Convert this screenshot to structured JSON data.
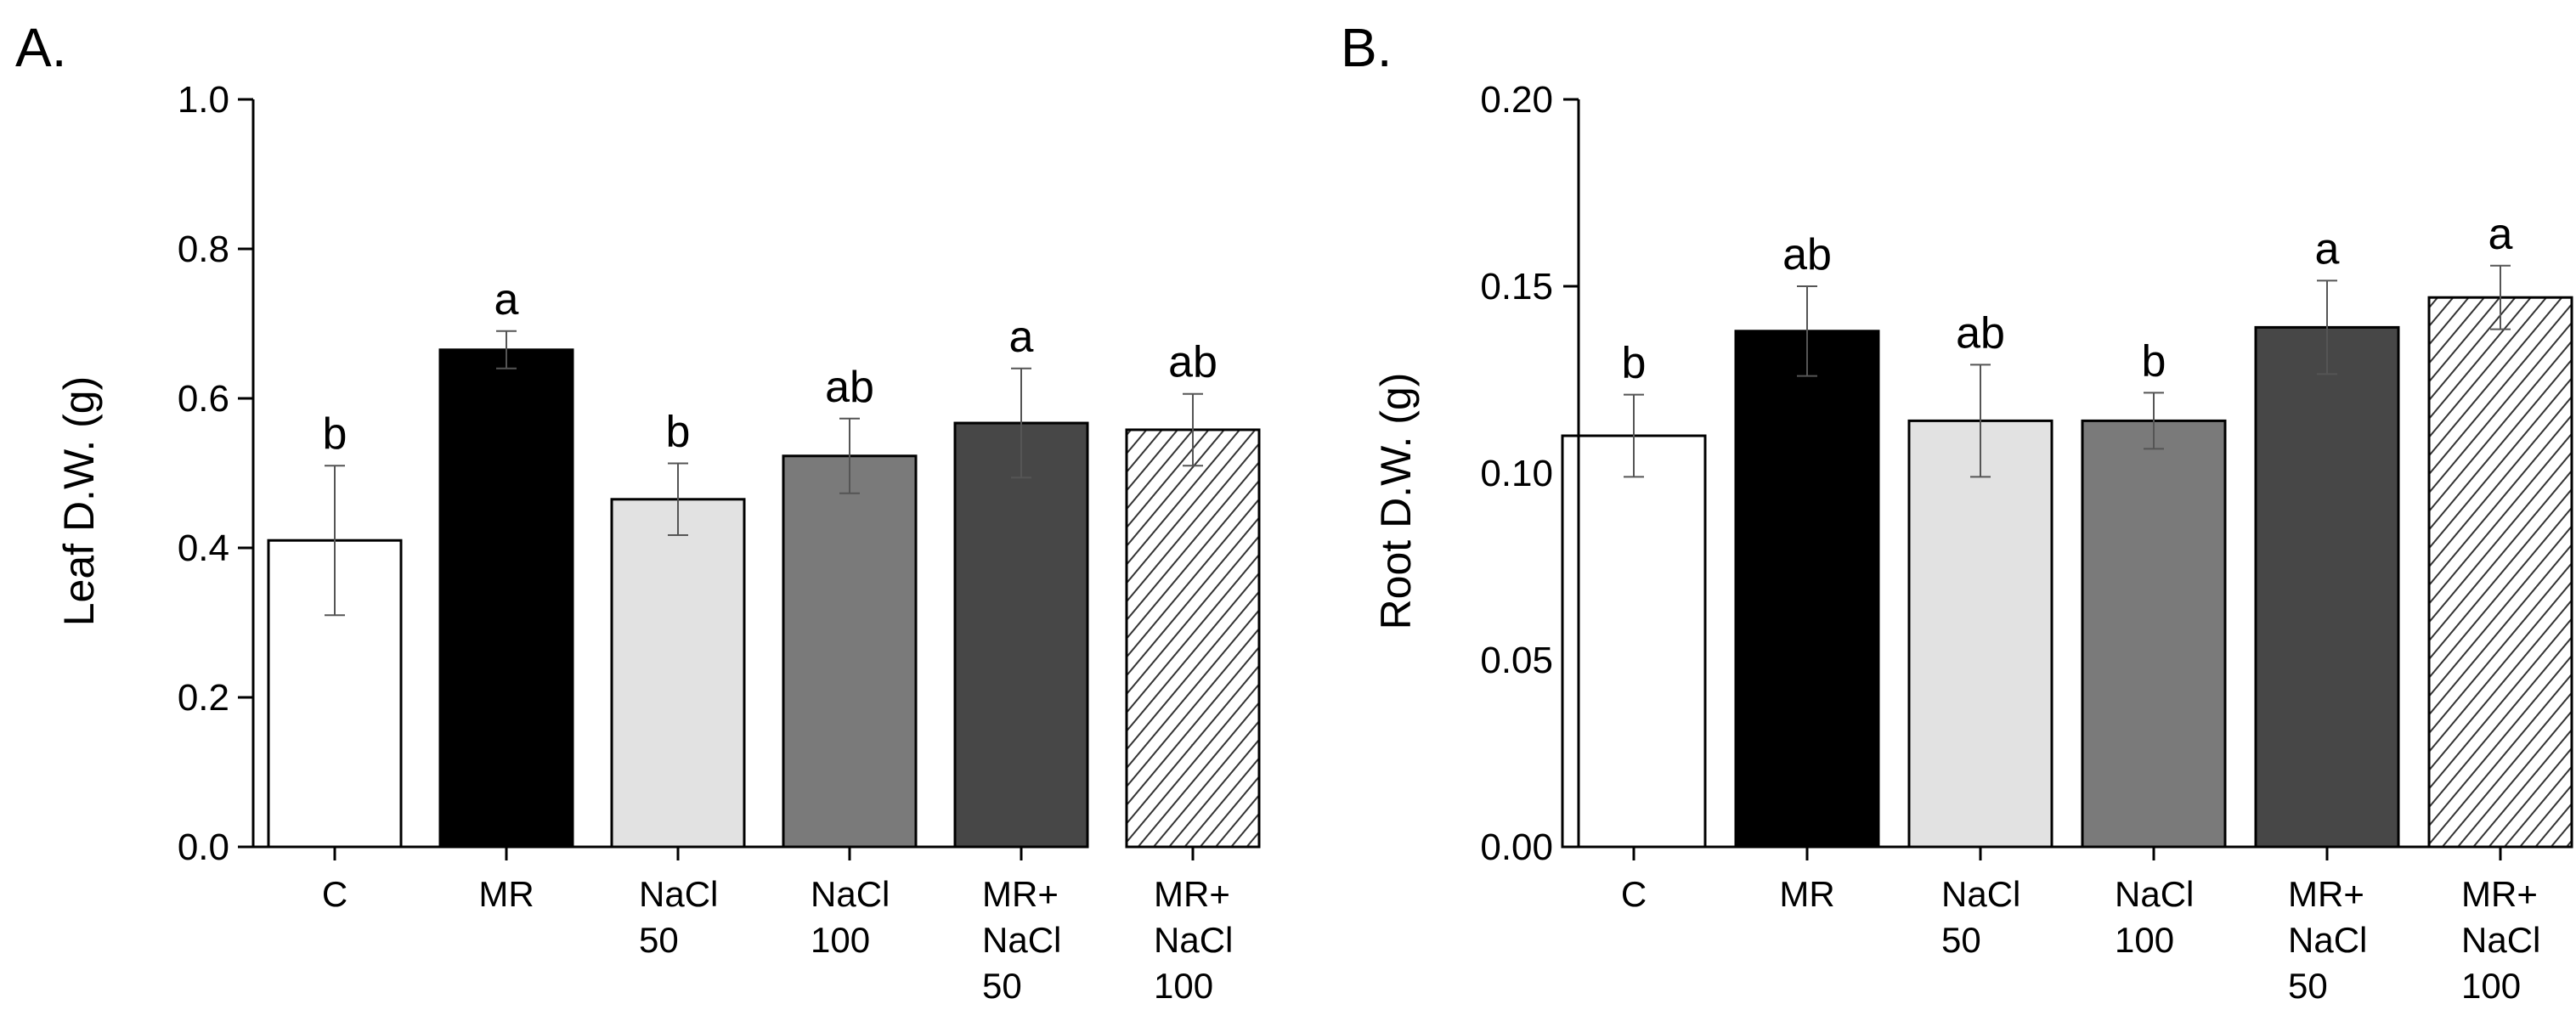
{
  "chart_data": [
    {
      "panel": "A.",
      "type": "bar",
      "title": "",
      "xlabel": "",
      "ylabel": "Leaf D.W. (g)",
      "ylim": [
        0,
        1.0
      ],
      "yticks": [
        "0.0",
        "0.2",
        "0.4",
        "0.6",
        "0.8",
        "1.0"
      ],
      "ytick_values": [
        0,
        0.2,
        0.4,
        0.6,
        0.8,
        1.0
      ],
      "categories": [
        [
          "C"
        ],
        [
          "MR"
        ],
        [
          "NaCl",
          "50"
        ],
        [
          "NaCl",
          "100"
        ],
        [
          "MR+",
          "NaCl",
          "50"
        ],
        [
          "MR+",
          "NaCl",
          "100"
        ]
      ],
      "values": [
        0.41,
        0.665,
        0.465,
        0.523,
        0.567,
        0.558
      ],
      "errors": [
        0.1,
        0.025,
        0.048,
        0.05,
        0.073,
        0.048
      ],
      "significance": [
        "b",
        "a",
        "b",
        "ab",
        "a",
        "ab"
      ],
      "fills": [
        "#ffffff",
        "#000000",
        "#e2e2e2",
        "#7a7a7a",
        "#474747",
        "hatch"
      ]
    },
    {
      "panel": "B.",
      "type": "bar",
      "title": "",
      "xlabel": "",
      "ylabel": "Root D.W. (g)",
      "ylim": [
        0,
        0.2
      ],
      "yticks": [
        "0.00",
        "0.05",
        "0.10",
        "0.15",
        "0.20"
      ],
      "ytick_values": [
        0,
        0.05,
        0.1,
        0.15,
        0.2
      ],
      "categories": [
        [
          "C"
        ],
        [
          "MR"
        ],
        [
          "NaCl",
          "50"
        ],
        [
          "NaCl",
          "100"
        ],
        [
          "MR+",
          "NaCl",
          "50"
        ],
        [
          "MR+",
          "NaCl",
          "100"
        ]
      ],
      "values": [
        0.11,
        0.138,
        0.114,
        0.114,
        0.139,
        0.147
      ],
      "errors": [
        0.011,
        0.012,
        0.015,
        0.0075,
        0.0125,
        0.0085
      ],
      "significance": [
        "b",
        "ab",
        "ab",
        "b",
        "a",
        "a"
      ],
      "fills": [
        "#ffffff",
        "#000000",
        "#e2e2e2",
        "#7a7a7a",
        "#474747",
        "hatch"
      ]
    }
  ]
}
